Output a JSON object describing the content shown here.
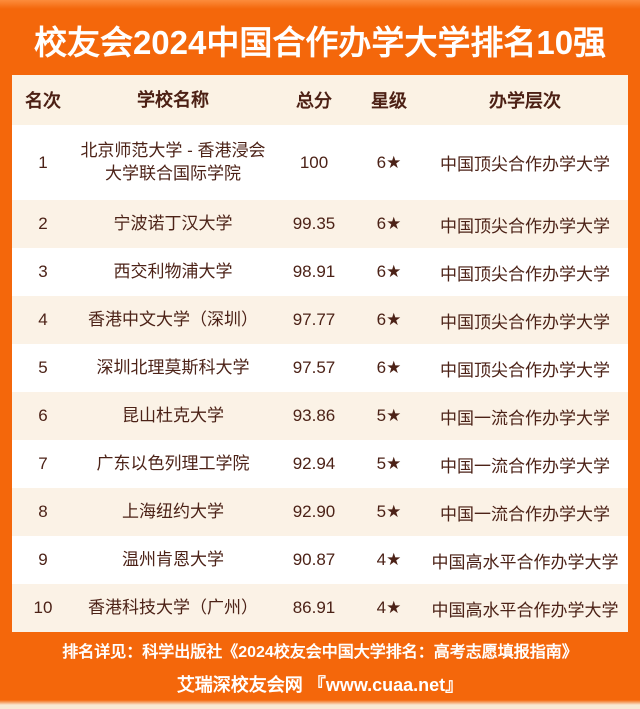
{
  "page": {
    "title": "校友会2024中国合作办学大学排名10强"
  },
  "colors": {
    "accent_orange": "#F4670B",
    "edge_light_orange": "#FC8C3C",
    "bottom_edge_cream": "#F8E9D4",
    "stripe_cream": "#FBF2E6",
    "header_row_cream": "#FBF2E4",
    "row_white": "#FFFFFF",
    "text_brown": "#4C2217",
    "title_white": "#FFFFFF"
  },
  "table": {
    "columns": {
      "rank": "名次",
      "school": "学校名称",
      "score": "总分",
      "stars": "星级",
      "level": "办学层次"
    },
    "rows": [
      {
        "rank": "1",
        "school": "北京师范大学 - 香港浸会大学联合国际学院",
        "score": "100",
        "stars": "6★",
        "level": "中国顶尖合作办学大学"
      },
      {
        "rank": "2",
        "school": "宁波诺丁汉大学",
        "score": "99.35",
        "stars": "6★",
        "level": "中国顶尖合作办学大学"
      },
      {
        "rank": "3",
        "school": "西交利物浦大学",
        "score": "98.91",
        "stars": "6★",
        "level": "中国顶尖合作办学大学"
      },
      {
        "rank": "4",
        "school": "香港中文大学（深圳）",
        "score": "97.77",
        "stars": "6★",
        "level": "中国顶尖合作办学大学"
      },
      {
        "rank": "5",
        "school": "深圳北理莫斯科大学",
        "score": "97.57",
        "stars": "6★",
        "level": "中国顶尖合作办学大学"
      },
      {
        "rank": "6",
        "school": "昆山杜克大学",
        "score": "93.86",
        "stars": "5★",
        "level": "中国一流合作办学大学"
      },
      {
        "rank": "7",
        "school": "广东以色列理工学院",
        "score": "92.94",
        "stars": "5★",
        "level": "中国一流合作办学大学"
      },
      {
        "rank": "8",
        "school": "上海纽约大学",
        "score": "92.90",
        "stars": "5★",
        "level": "中国一流合作办学大学"
      },
      {
        "rank": "9",
        "school": "温州肯恩大学",
        "score": "90.87",
        "stars": "4★",
        "level": "中国高水平合作办学大学"
      },
      {
        "rank": "10",
        "school": "香港科技大学（广州）",
        "score": "86.91",
        "stars": "4★",
        "level": "中国高水平合作办学大学"
      }
    ]
  },
  "footer": {
    "line1": "排名详见：科学出版社《2024校友会中国大学排名：高考志愿填报指南》",
    "line2": "艾瑞深校友会网 『www.cuaa.net』"
  },
  "chart_data": {
    "type": "table",
    "title": "校友会2024中国合作办学大学排名10强",
    "columns": [
      "名次",
      "学校名称",
      "总分",
      "星级",
      "办学层次"
    ],
    "rows": [
      [
        1,
        "北京师范大学 - 香港浸会大学联合国际学院",
        100,
        "6★",
        "中国顶尖合作办学大学"
      ],
      [
        2,
        "宁波诺丁汉大学",
        99.35,
        "6★",
        "中国顶尖合作办学大学"
      ],
      [
        3,
        "西交利物浦大学",
        98.91,
        "6★",
        "中国顶尖合作办学大学"
      ],
      [
        4,
        "香港中文大学（深圳）",
        97.77,
        "6★",
        "中国顶尖合作办学大学"
      ],
      [
        5,
        "深圳北理莫斯科大学",
        97.57,
        "6★",
        "中国顶尖合作办学大学"
      ],
      [
        6,
        "昆山杜克大学",
        93.86,
        "5★",
        "中国一流合作办学大学"
      ],
      [
        7,
        "广东以色列理工学院",
        92.94,
        "5★",
        "中国一流合作办学大学"
      ],
      [
        8,
        "上海纽约大学",
        92.9,
        "5★",
        "中国一流合作办学大学"
      ],
      [
        9,
        "温州肯恩大学",
        90.87,
        "4★",
        "中国高水平合作办学大学"
      ],
      [
        10,
        "香港科技大学（广州）",
        86.91,
        "4★",
        "中国高水平合作办学大学"
      ]
    ],
    "notes": [
      "排名详见：科学出版社《2024校友会中国大学排名：高考志愿填报指南》",
      "艾瑞深校友会网 『www.cuaa.net』"
    ]
  }
}
